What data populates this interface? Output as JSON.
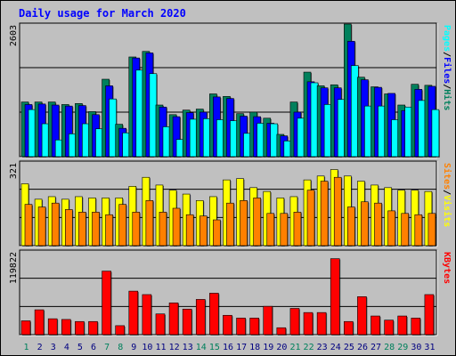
{
  "chart_data": {
    "type": "bar",
    "title": "Daily usage for March 2020",
    "categories": [
      "1",
      "2",
      "3",
      "4",
      "5",
      "6",
      "7",
      "8",
      "9",
      "10",
      "11",
      "12",
      "13",
      "14",
      "15",
      "16",
      "17",
      "18",
      "19",
      "20",
      "21",
      "22",
      "23",
      "24",
      "25",
      "26",
      "27",
      "28",
      "29",
      "30",
      "31"
    ],
    "weekend_days": [
      "1",
      "7",
      "8",
      "14",
      "15",
      "21",
      "22",
      "28",
      "29"
    ],
    "panels": [
      {
        "ymax_label": "2603",
        "ymax": 2603,
        "series": [
          {
            "name": "Hits",
            "color": "#00805c",
            "values": [
              1080,
              1080,
              1080,
              1030,
              1050,
              890,
              1530,
              640,
              1970,
              2080,
              1020,
              830,
              920,
              940,
              1240,
              1190,
              850,
              880,
              760,
              440,
              1080,
              1670,
              1400,
              1420,
              2620,
              1570,
              1380,
              1240,
              1020,
              1430,
              1410
            ]
          },
          {
            "name": "Files",
            "color": "#0000ff",
            "values": [
              1030,
              1040,
              1020,
              1000,
              1010,
              830,
              1400,
              560,
              1950,
              2050,
              980,
              790,
              870,
              880,
              1180,
              1150,
              800,
              790,
              660,
              410,
              880,
              1480,
              1360,
              1360,
              2280,
              1520,
              1370,
              1250,
              910,
              1330,
              1390
            ]
          },
          {
            "name": "Pages",
            "color": "#00ffff",
            "values": [
              930,
              650,
              330,
              450,
              650,
              550,
              1140,
              470,
              1710,
              1640,
              590,
              340,
              740,
              750,
              730,
              710,
              460,
              660,
              650,
              310,
              760,
              1460,
              1030,
              1130,
              1800,
              1000,
              1000,
              730,
              980,
              1110,
              930
            ]
          }
        ],
        "ylabel_parts": [
          {
            "text": "Hits",
            "color": "#00805c"
          },
          {
            "text": "/",
            "color": "#000000"
          },
          {
            "text": "Files",
            "color": "#0000ff"
          },
          {
            "text": "/",
            "color": "#000000"
          },
          {
            "text": "Pages",
            "color": "#00ffff"
          }
        ]
      },
      {
        "ymax_label": "321",
        "ymax": 321,
        "series": [
          {
            "name": "Visits",
            "color": "#ffff00",
            "values": [
              240,
              180,
              190,
              180,
              190,
              185,
              185,
              185,
              230,
              265,
              235,
              215,
              200,
              175,
              190,
              255,
              260,
              225,
              210,
              185,
              190,
              255,
              270,
              295,
              270,
              250,
              235,
              225,
              215,
              215,
              210
            ]
          },
          {
            "name": "Sites",
            "color": "#ff8000",
            "values": [
              160,
              150,
              165,
              140,
              130,
              130,
              120,
              160,
              130,
              175,
              130,
              145,
              120,
              115,
              100,
              165,
              175,
              185,
              125,
              125,
              130,
              215,
              250,
              265,
              150,
              170,
              165,
              135,
              125,
              120,
              125
            ]
          }
        ],
        "ylabel_parts": [
          {
            "text": "Visits",
            "color": "#ffff00"
          },
          {
            "text": "/",
            "color": "#000000"
          },
          {
            "text": "Sites",
            "color": "#ff8000"
          }
        ]
      },
      {
        "ymax_label": "119822",
        "ymax": 119822,
        "series": [
          {
            "name": "KBytes",
            "color": "#ff0000",
            "values": [
              20000,
              36000,
              23000,
              22000,
              19000,
              19000,
              92000,
              13000,
              63000,
              58000,
              30000,
              46000,
              37000,
              51000,
              60000,
              28000,
              24000,
              24000,
              41000,
              10000,
              38000,
              32000,
              32000,
              110000,
              19000,
              55000,
              27000,
              21000,
              27000,
              24000,
              58000
            ]
          }
        ],
        "ylabel_parts": [
          {
            "text": "KBytes",
            "color": "#ff0000"
          }
        ]
      }
    ]
  },
  "colors": {
    "background": "#c0c0c0",
    "plot_background": "#c0c0c0",
    "title": "#0000ff",
    "weekday_label": "#00805c",
    "weekend_label": "#00805c",
    "gridline": "#000000"
  }
}
